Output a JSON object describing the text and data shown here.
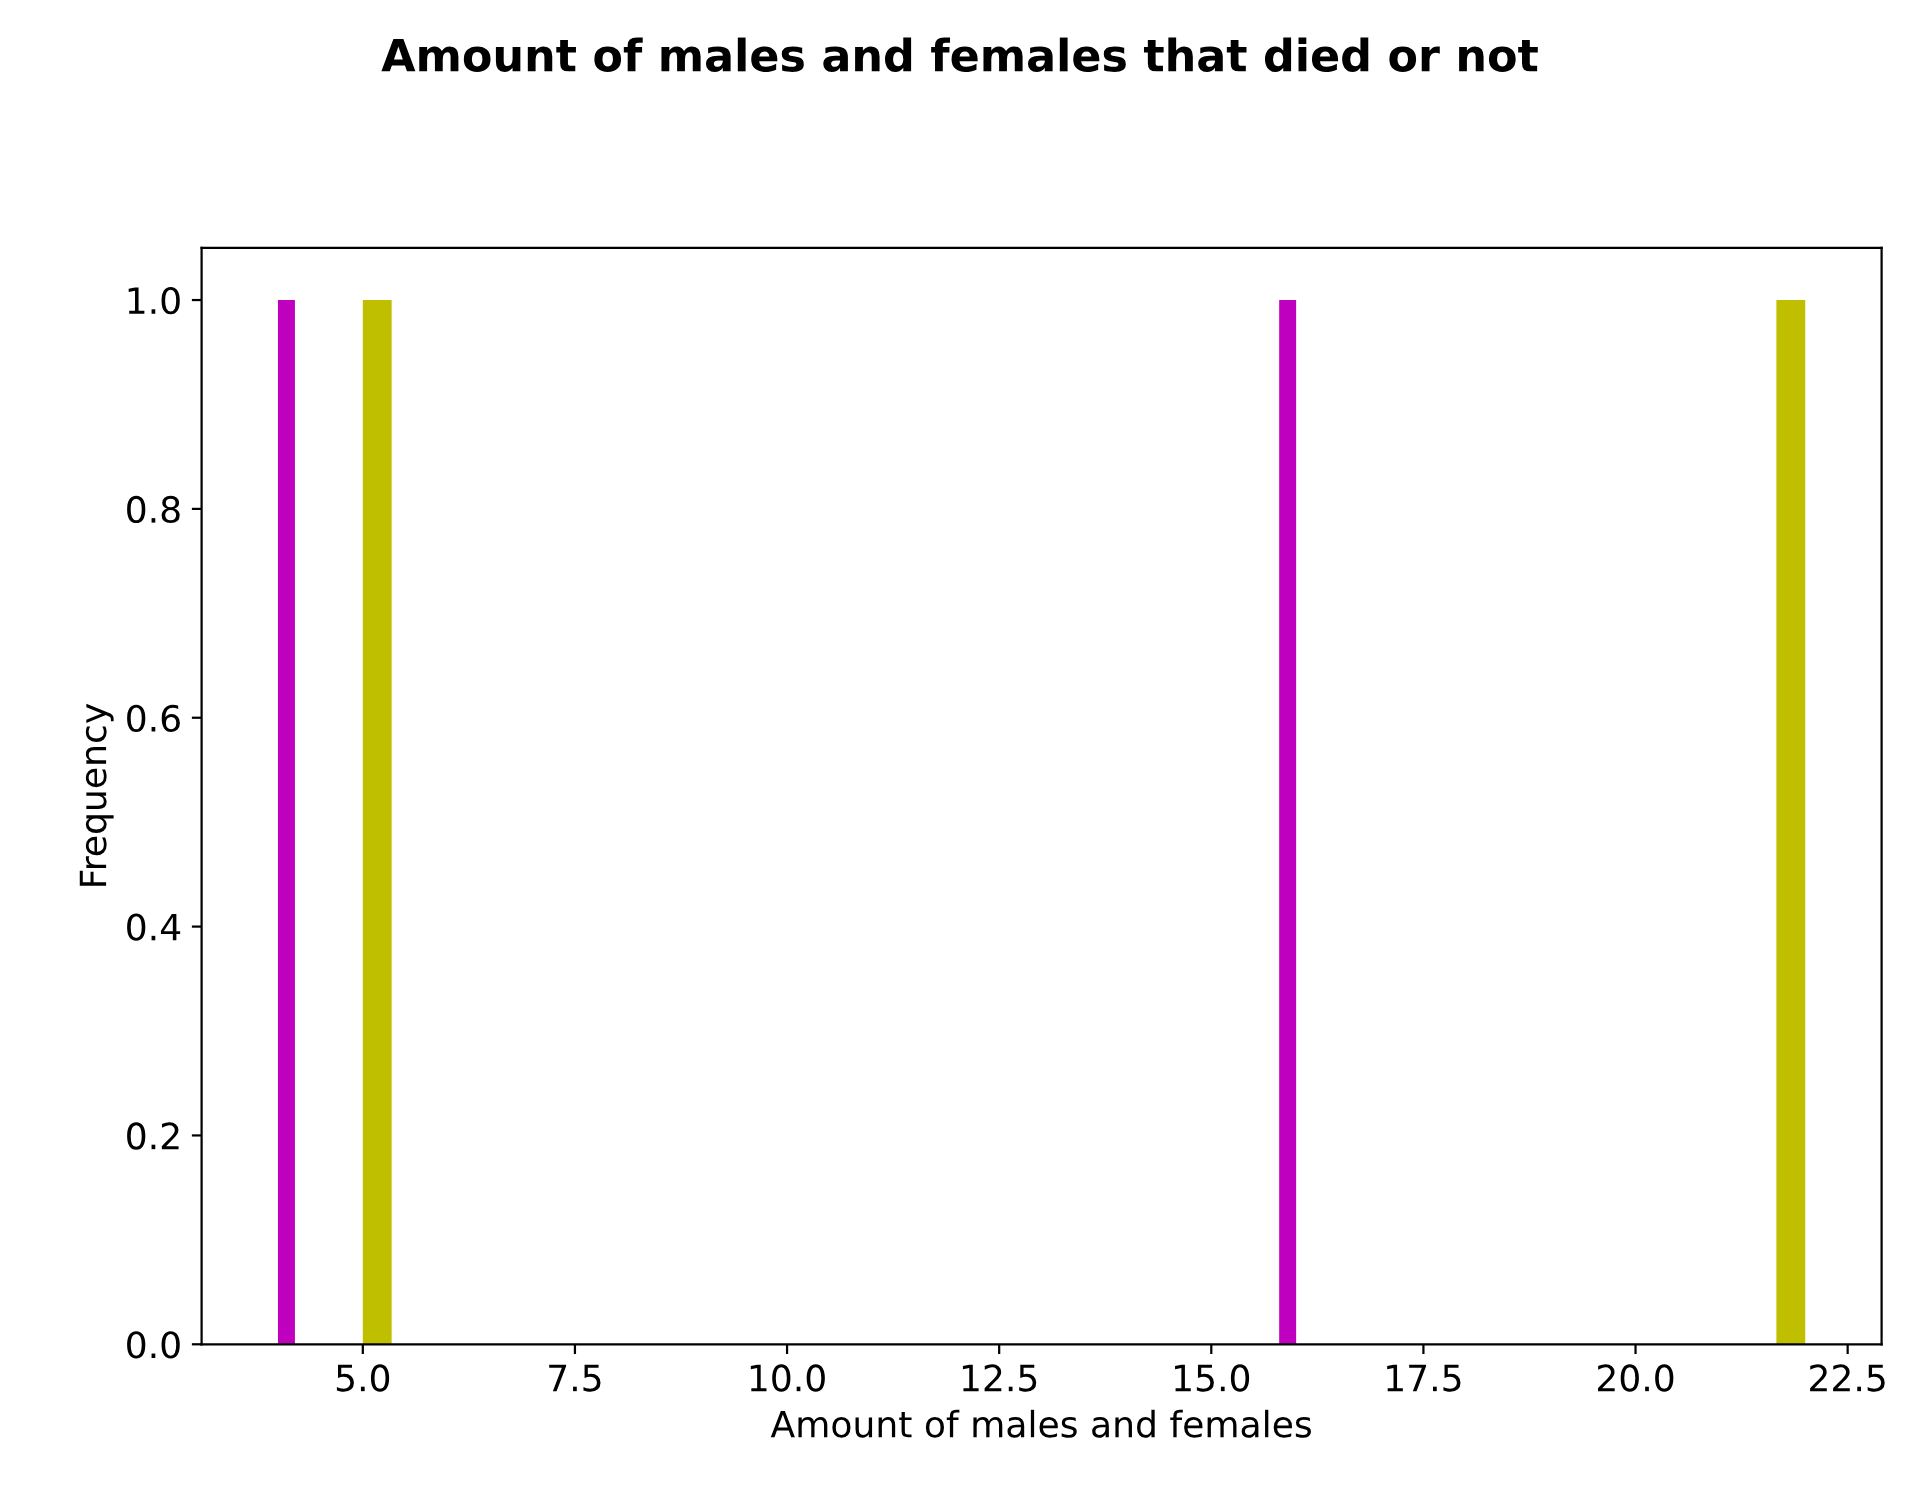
{
  "chart_data": {
    "type": "histogram",
    "title": "Amount of males and females that died or not",
    "xlabel": "Amount of males and females",
    "ylabel": "Frequency",
    "series": [
      {
        "color": "#bf00bf",
        "values": [
          1,
          0,
          0,
          0,
          1,
          0,
          0
        ]
      },
      {
        "color": "#bfbf00",
        "values": [
          0,
          0,
          1,
          0,
          0,
          0,
          1
        ]
      }
    ],
    "bins": [
      4,
      4.2,
      5,
      5.34,
      15.8,
      16,
      21.66,
      22
    ],
    "xlim": [
      3.1,
      22.9
    ],
    "ylim": [
      0,
      1.05
    ],
    "xticks": [
      {
        "value": 5,
        "label": "5.0"
      },
      7.5,
      {
        "value": 10,
        "label": "10.0"
      },
      12.5,
      {
        "value": 15,
        "label": "15.0"
      },
      17.5,
      {
        "value": 20,
        "label": "20.0"
      },
      22.5
    ],
    "yticks": [
      {
        "value": 0,
        "label": "0.0"
      },
      0.2,
      0.4,
      0.6,
      0.8,
      {
        "value": 1,
        "label": "1.0"
      }
    ],
    "grid": false,
    "legend": false
  }
}
